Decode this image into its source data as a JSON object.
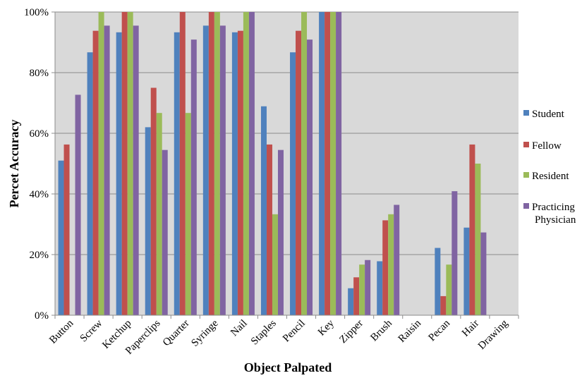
{
  "chart_data": {
    "type": "bar",
    "xlabel": "Object Palpated",
    "ylabel": "Percet Accuracy",
    "ylim": [
      0,
      100
    ],
    "y_ticks": [
      "0%",
      "20%",
      "40%",
      "60%",
      "80%",
      "100%"
    ],
    "grid": true,
    "legend_position": "right",
    "plot_background": "#d9d9d9",
    "categories": [
      "Button",
      "Screw",
      "Ketchup",
      "Paperclips",
      "Quarter",
      "Syringe",
      "Nail",
      "Staples",
      "Pencil",
      "Key",
      "Zipper",
      "Brush",
      "Raisin",
      "Pecan",
      "Hair",
      "Drawing"
    ],
    "series": [
      {
        "name": "Student",
        "color": "#4f81bd",
        "values": [
          51,
          86.7,
          93.3,
          62,
          93.3,
          95.5,
          93.3,
          68.9,
          86.7,
          100,
          8.9,
          17.8,
          0,
          22.2,
          28.9,
          0
        ]
      },
      {
        "name": "Fellow",
        "color": "#c0504d",
        "values": [
          56.3,
          93.8,
          100,
          75,
          100,
          100,
          93.8,
          56.3,
          93.8,
          100,
          12.5,
          31.3,
          0,
          6.3,
          56.3,
          0
        ]
      },
      {
        "name": "Resident",
        "color": "#9bbb59",
        "values": [
          0,
          100,
          100,
          66.7,
          66.7,
          100,
          100,
          33.3,
          100,
          100,
          16.7,
          33.3,
          0,
          16.7,
          50,
          0
        ]
      },
      {
        "name": "Practicing Physician",
        "label_lines": [
          "Practicing",
          "Physician"
        ],
        "color": "#8064a2",
        "values": [
          72.7,
          95.5,
          95.5,
          54.5,
          90.9,
          95.5,
          100,
          54.5,
          90.9,
          100,
          18.2,
          36.4,
          0,
          40.9,
          27.3,
          0
        ]
      }
    ]
  }
}
